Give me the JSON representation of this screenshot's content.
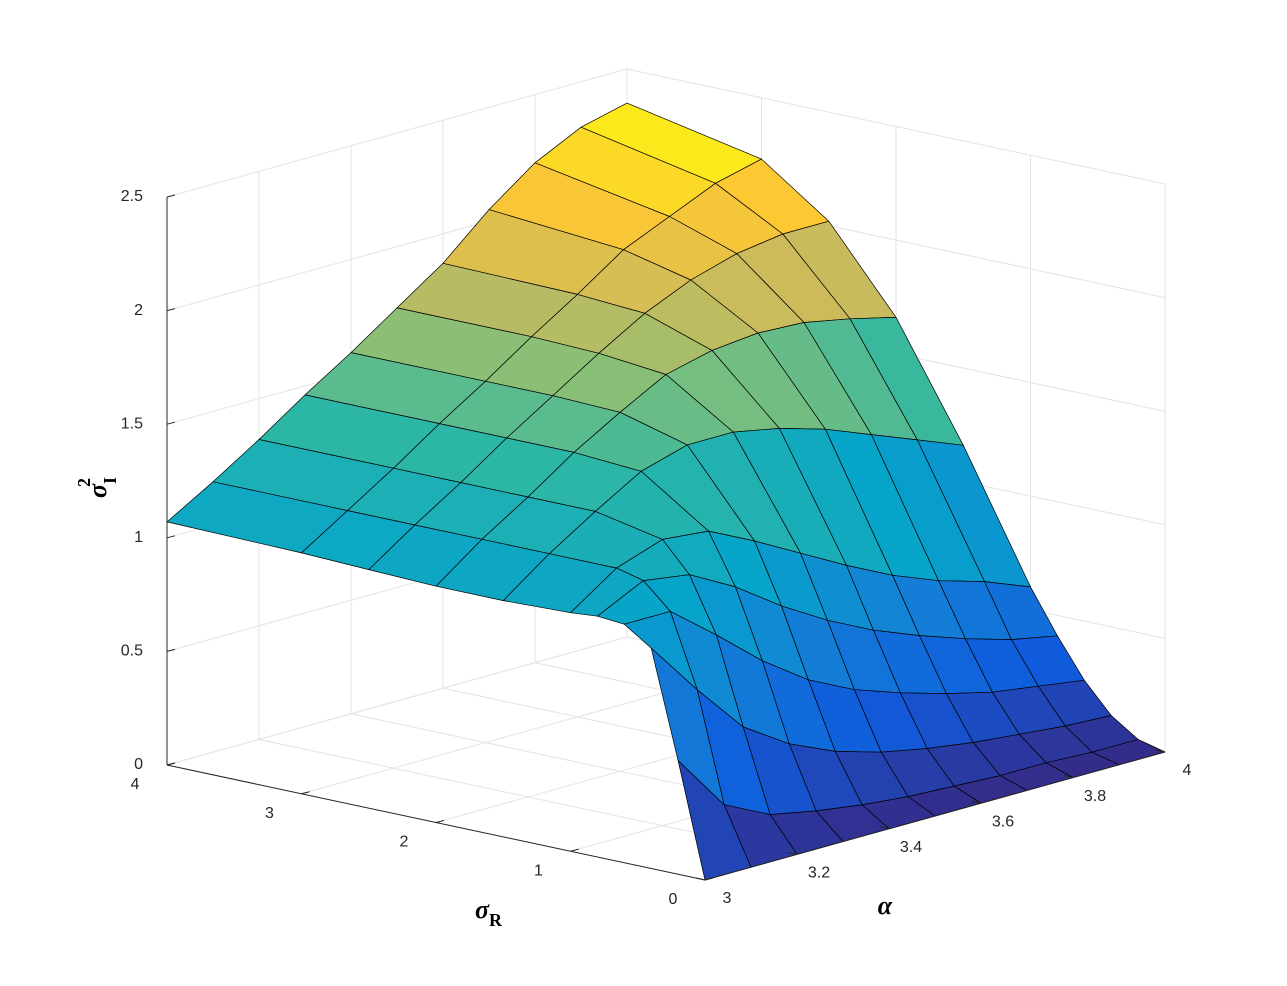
{
  "chart_data": {
    "type": "surface",
    "xlabel": "α",
    "ylabel": [
      "σ",
      "R"
    ],
    "zlabel": [
      "σ",
      "I",
      "2"
    ],
    "x": [
      3,
      3.1,
      3.2,
      3.3,
      3.4,
      3.5,
      3.6,
      3.7,
      3.8,
      3.9,
      4
    ],
    "y": [
      0,
      0.2,
      0.4,
      0.6,
      0.8,
      1,
      1.5,
      2,
      2.5,
      3,
      4
    ],
    "z": [
      [
        0,
        0.5,
        0.97,
        1.05,
        1.06,
        1.05,
        1.04,
        1.04,
        1.05,
        1.06,
        1.07
      ],
      [
        0,
        0.25,
        0.73,
        1.05,
        1.16,
        1.19,
        1.19,
        1.19,
        1.19,
        1.19,
        1.19
      ],
      [
        0,
        0.15,
        0.51,
        0.89,
        1.13,
        1.26,
        1.32,
        1.32,
        1.32,
        1.32,
        1.32
      ],
      [
        0,
        0.11,
        0.38,
        0.72,
        1.02,
        1.24,
        1.44,
        1.46,
        1.46,
        1.46,
        1.46
      ],
      [
        0,
        0.08,
        0.29,
        0.58,
        0.88,
        1.14,
        1.5,
        1.58,
        1.59,
        1.59,
        1.59
      ],
      [
        0,
        0.06,
        0.23,
        0.48,
        0.76,
        1.03,
        1.5,
        1.69,
        1.72,
        1.73,
        1.73
      ],
      [
        0,
        0.05,
        0.19,
        0.41,
        0.66,
        0.92,
        1.46,
        1.74,
        1.84,
        1.86,
        1.87
      ],
      [
        0,
        0.04,
        0.16,
        0.35,
        0.58,
        0.82,
        1.4,
        1.76,
        1.93,
        2.0,
        2.05
      ],
      [
        0,
        0.04,
        0.14,
        0.3,
        0.51,
        0.74,
        1.32,
        1.75,
        1.99,
        2.09,
        2.2
      ],
      [
        0,
        0.03,
        0.12,
        0.27,
        0.45,
        0.68,
        1.24,
        1.71,
        2.02,
        2.18,
        2.3
      ],
      [
        0,
        0.03,
        0.11,
        0.24,
        0.41,
        0.6,
        1.16,
        1.66,
        2.02,
        2.23,
        2.35
      ]
    ],
    "xlim": [
      3,
      4
    ],
    "ylim": [
      0,
      4
    ],
    "zlim": [
      0,
      2.5
    ],
    "xticks": [
      3,
      3.2,
      3.4,
      3.6,
      3.8,
      4
    ],
    "yticks": [
      0,
      1,
      2,
      3,
      4
    ],
    "zticks": [
      0,
      0.5,
      1,
      1.5,
      2,
      2.5
    ],
    "grid": true,
    "colormap": "parula",
    "edgecolor": "#000000"
  }
}
